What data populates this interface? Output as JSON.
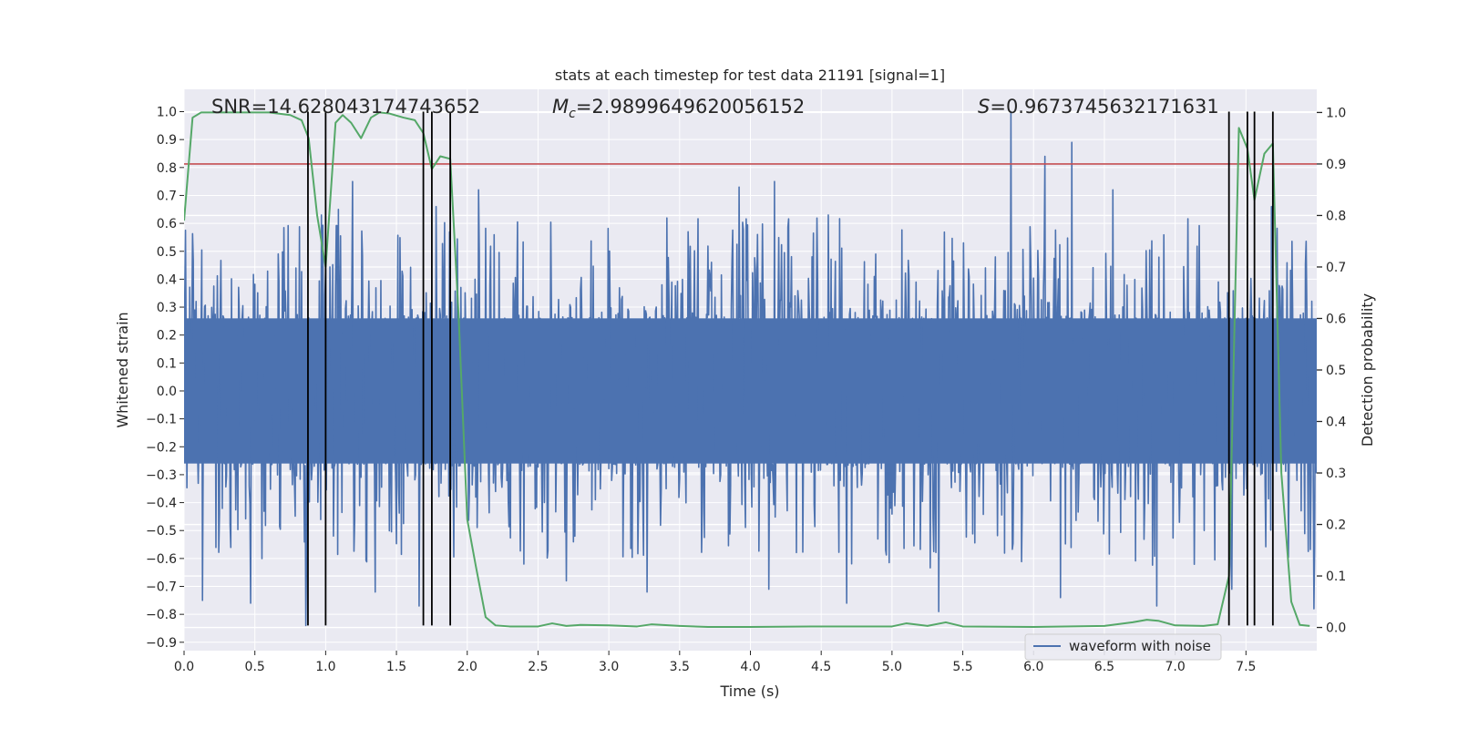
{
  "chart_data": {
    "type": "line",
    "title": "stats at each timestep for test data 21191 [signal=1]",
    "xlabel": "Time (s)",
    "ylabel": "Whitened strain",
    "y2label": "Detection probability",
    "xlim": [
      0.0,
      8.0
    ],
    "ylim": [
      -0.93,
      1.08
    ],
    "y2lim": [
      -0.045,
      1.045
    ],
    "xticks": [
      0.0,
      0.5,
      1.0,
      1.5,
      2.0,
      2.5,
      3.0,
      3.5,
      4.0,
      4.5,
      5.0,
      5.5,
      6.0,
      6.5,
      7.0,
      7.5
    ],
    "xtick_labels": [
      "0.0",
      "0.5",
      "1.0",
      "1.5",
      "2.0",
      "2.5",
      "3.0",
      "3.5",
      "4.0",
      "4.5",
      "5.0",
      "5.5",
      "6.0",
      "6.5",
      "7.0",
      "7.5"
    ],
    "yticks": [
      -0.9,
      -0.8,
      -0.7,
      -0.6,
      -0.5,
      -0.4,
      -0.3,
      -0.2,
      -0.1,
      0.0,
      0.1,
      0.2,
      0.3,
      0.4,
      0.5,
      0.6,
      0.7,
      0.8,
      0.9,
      1.0
    ],
    "ytick_labels": [
      "−0.9",
      "−0.8",
      "−0.7",
      "−0.6",
      "−0.5",
      "−0.4",
      "−0.3",
      "−0.2",
      "−0.1",
      "0.0",
      "0.1",
      "0.2",
      "0.3",
      "0.4",
      "0.5",
      "0.6",
      "0.7",
      "0.8",
      "0.9",
      "1.0"
    ],
    "y2ticks": [
      0.0,
      0.1,
      0.2,
      0.3,
      0.4,
      0.5,
      0.6,
      0.7,
      0.8,
      0.9,
      1.0
    ],
    "y2tick_labels": [
      "0.0",
      "0.1",
      "0.2",
      "0.3",
      "0.4",
      "0.5",
      "0.6",
      "0.7",
      "0.8",
      "0.9",
      "1.0"
    ],
    "annotations": {
      "snr": "SNR=14.628043174743652",
      "mc_symbol": "M",
      "mc_sub": "c",
      "mc_value": "=2.9899649620056152",
      "s_symbol": "S",
      "s_value": "=0.9673745632171631"
    },
    "legend": {
      "label": "waveform with noise",
      "position": "lower-right"
    },
    "threshold_prob": 0.9,
    "detection_lines_x": [
      0.875,
      1.0,
      1.69,
      1.75,
      1.88,
      7.38,
      7.51,
      7.56,
      7.69
    ],
    "detection_line_ylim": [
      -0.84,
      1.0
    ],
    "waveform": {
      "name": "waveform with noise",
      "duration": 8.0,
      "n_samples": 1600,
      "core_amplitude": 0.26,
      "upper_envelope": 0.45,
      "lower_envelope": -0.47,
      "spikes": [
        {
          "t": 0.13,
          "v": -0.75
        },
        {
          "t": 0.47,
          "v": -0.76
        },
        {
          "t": 0.86,
          "v": -0.84
        },
        {
          "t": 0.97,
          "v": 0.63
        },
        {
          "t": 1.09,
          "v": 0.65
        },
        {
          "t": 1.19,
          "v": 0.75
        },
        {
          "t": 1.35,
          "v": -0.72
        },
        {
          "t": 1.66,
          "v": -0.77
        },
        {
          "t": 1.78,
          "v": 0.66
        },
        {
          "t": 2.08,
          "v": 0.72
        },
        {
          "t": 2.4,
          "v": -0.62
        },
        {
          "t": 2.7,
          "v": -0.68
        },
        {
          "t": 3.27,
          "v": -0.72
        },
        {
          "t": 3.92,
          "v": 0.73
        },
        {
          "t": 4.17,
          "v": 0.75
        },
        {
          "t": 4.13,
          "v": -0.71
        },
        {
          "t": 4.55,
          "v": 0.63
        },
        {
          "t": 4.68,
          "v": -0.76
        },
        {
          "t": 5.33,
          "v": -0.79
        },
        {
          "t": 5.84,
          "v": 1.0
        },
        {
          "t": 6.08,
          "v": 0.84
        },
        {
          "t": 6.27,
          "v": 0.89
        },
        {
          "t": 6.19,
          "v": -0.74
        },
        {
          "t": 6.56,
          "v": 0.72
        },
        {
          "t": 6.87,
          "v": -0.77
        },
        {
          "t": 7.4,
          "v": -0.71
        },
        {
          "t": 7.68,
          "v": 0.66
        },
        {
          "t": 7.98,
          "v": -0.78
        }
      ]
    },
    "probability": {
      "name": "Detection probability",
      "x": [
        0.0,
        0.06,
        0.12,
        0.3,
        0.6,
        0.75,
        0.83,
        0.88,
        0.94,
        1.0,
        1.07,
        1.12,
        1.18,
        1.25,
        1.32,
        1.38,
        1.45,
        1.55,
        1.63,
        1.69,
        1.75,
        1.81,
        1.88,
        1.94,
        2.0,
        2.06,
        2.13,
        2.2,
        2.3,
        2.5,
        2.6,
        2.7,
        2.8,
        3.0,
        3.2,
        3.3,
        3.5,
        3.7,
        4.0,
        4.5,
        5.0,
        5.1,
        5.25,
        5.38,
        5.5,
        6.0,
        6.5,
        6.7,
        6.8,
        6.88,
        7.0,
        7.2,
        7.3,
        7.38,
        7.45,
        7.51,
        7.56,
        7.63,
        7.69,
        7.75,
        7.82,
        7.88,
        7.95
      ],
      "y": [
        0.79,
        0.99,
        1.0,
        1.0,
        1.0,
        0.995,
        0.985,
        0.95,
        0.8,
        0.7,
        0.98,
        0.995,
        0.98,
        0.95,
        0.99,
        1.0,
        0.998,
        0.99,
        0.985,
        0.96,
        0.89,
        0.915,
        0.91,
        0.6,
        0.21,
        0.12,
        0.02,
        0.004,
        0.002,
        0.002,
        0.008,
        0.003,
        0.005,
        0.004,
        0.002,
        0.006,
        0.003,
        0.001,
        0.001,
        0.002,
        0.002,
        0.008,
        0.003,
        0.01,
        0.002,
        0.001,
        0.003,
        0.01,
        0.015,
        0.013,
        0.004,
        0.003,
        0.006,
        0.1,
        0.97,
        0.93,
        0.83,
        0.92,
        0.94,
        0.3,
        0.05,
        0.005,
        0.003
      ]
    },
    "colors": {
      "plot_bg": "#eaeaf2",
      "grid": "#ffffff",
      "waveform": "#4c72b0",
      "probability": "#55a868",
      "threshold": "#c44e52",
      "detection_lines": "#000000"
    }
  }
}
